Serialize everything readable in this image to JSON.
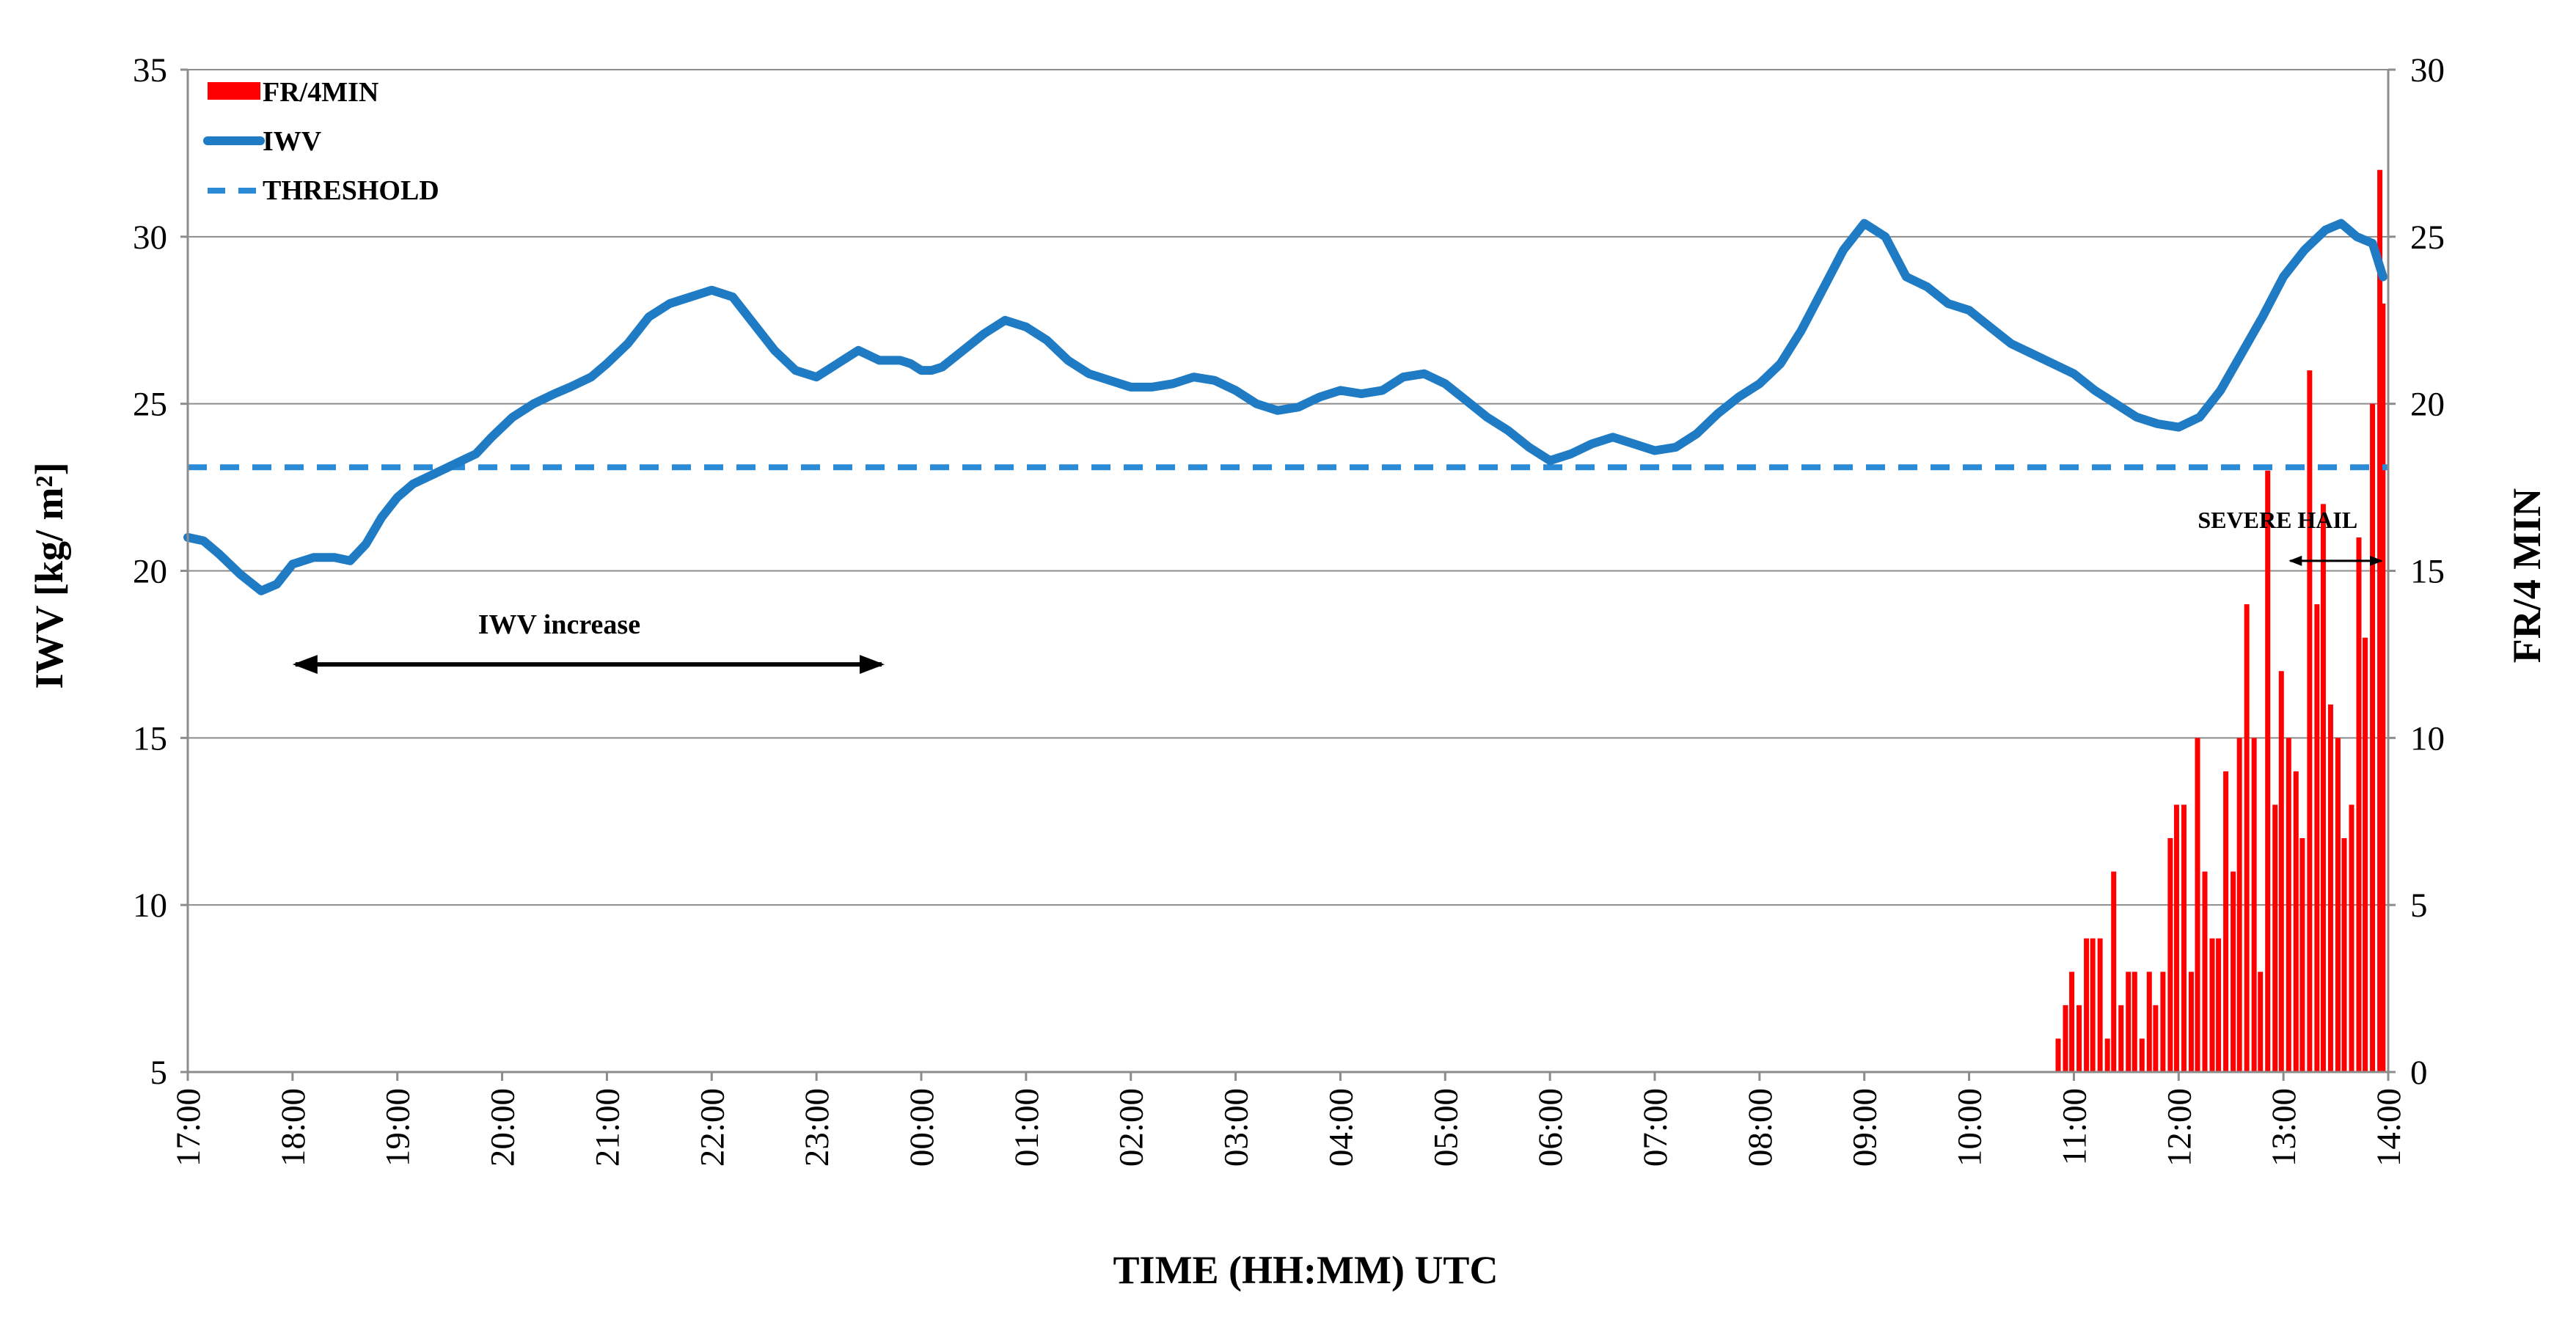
{
  "chart_data": {
    "type": "line",
    "xlabel": "TIME (HH:MM) UTC",
    "ylabel": "IWV [kg/ m²]",
    "y2label": "FR/4 MIN",
    "x_ticks": [
      "17:00",
      "18:00",
      "19:00",
      "20:00",
      "21:00",
      "22:00",
      "23:00",
      "00:00",
      "01:00",
      "02:00",
      "03:00",
      "04:00",
      "05:00",
      "06:00",
      "07:00",
      "08:00",
      "09:00",
      "10:00",
      "11:00",
      "12:00",
      "13:00",
      "14:00"
    ],
    "xlim_hours": [
      0,
      21
    ],
    "ylim": [
      5,
      35
    ],
    "y_ticks": [
      5,
      10,
      15,
      20,
      25,
      30,
      35
    ],
    "y2lim": [
      0,
      30
    ],
    "y2_ticks": [
      0,
      5,
      10,
      15,
      20,
      25,
      30
    ],
    "grid": "horizontal",
    "legend_position": "top-left",
    "colors": {
      "iwv": "#1f7bc4",
      "threshold": "#2a8ad6",
      "fr": "#ff0000"
    },
    "series": [
      {
        "name": "FR/4MIN",
        "type": "bar",
        "axis": "right",
        "x_hours": [
          17.85,
          17.92,
          17.98,
          18.05,
          18.12,
          18.18,
          18.25,
          18.32,
          18.38,
          18.45,
          18.52,
          18.58,
          18.65,
          18.72,
          18.78,
          18.85,
          18.92,
          18.98,
          19.05,
          19.12,
          19.18,
          19.25,
          19.32,
          19.38,
          19.45,
          19.52,
          19.58,
          19.65,
          19.72,
          19.78,
          19.85,
          19.92,
          19.98,
          20.05,
          20.12,
          20.18,
          20.25,
          20.32,
          20.38,
          20.45,
          20.52,
          20.58,
          20.65,
          20.72,
          20.78,
          20.85,
          20.92,
          20.95
        ],
        "values": [
          1,
          2,
          3,
          2,
          4,
          4,
          4,
          1,
          6,
          2,
          3,
          3,
          1,
          3,
          2,
          3,
          7,
          8,
          8,
          3,
          10,
          6,
          4,
          4,
          9,
          6,
          10,
          14,
          10,
          3,
          18,
          8,
          12,
          10,
          9,
          7,
          21,
          14,
          17,
          11,
          10,
          7,
          8,
          16,
          13,
          20,
          27,
          23
        ]
      },
      {
        "name": "IWV",
        "type": "line",
        "axis": "left",
        "x_hours": [
          0,
          0.15,
          0.3,
          0.5,
          0.7,
          0.85,
          1,
          1.2,
          1.4,
          1.55,
          1.7,
          1.85,
          2.0,
          2.15,
          2.35,
          2.55,
          2.75,
          2.9,
          3.1,
          3.3,
          3.5,
          3.65,
          3.85,
          4.0,
          4.2,
          4.4,
          4.6,
          4.8,
          5.0,
          5.2,
          5.4,
          5.6,
          5.8,
          6.0,
          6.2,
          6.4,
          6.6,
          6.8,
          6.9,
          7.0,
          7.1,
          7.2,
          7.4,
          7.6,
          7.8,
          8.0,
          8.2,
          8.4,
          8.6,
          8.8,
          9.0,
          9.2,
          9.4,
          9.6,
          9.8,
          10.0,
          10.2,
          10.4,
          10.6,
          10.8,
          11.0,
          11.2,
          11.4,
          11.6,
          11.8,
          12.0,
          12.2,
          12.4,
          12.6,
          12.8,
          13.0,
          13.2,
          13.4,
          13.6,
          13.8,
          14.0,
          14.2,
          14.4,
          14.6,
          14.8,
          15.0,
          15.2,
          15.4,
          15.6,
          15.8,
          16.0,
          16.2,
          16.4,
          16.6,
          16.8,
          17.0,
          17.2,
          17.4,
          17.6,
          17.8,
          18.0,
          18.2,
          18.4,
          18.6,
          18.8,
          19.0,
          19.2,
          19.4,
          19.6,
          19.8,
          20.0,
          20.2,
          20.4,
          20.55,
          20.7,
          20.85,
          20.95
        ],
        "values": [
          21.0,
          20.9,
          20.5,
          19.9,
          19.4,
          19.6,
          20.2,
          20.4,
          20.4,
          20.3,
          20.8,
          21.6,
          22.2,
          22.6,
          22.9,
          23.2,
          23.5,
          24.0,
          24.6,
          25.0,
          25.3,
          25.5,
          25.8,
          26.2,
          26.8,
          27.6,
          28.0,
          28.2,
          28.4,
          28.2,
          27.4,
          26.6,
          26.0,
          25.8,
          26.2,
          26.6,
          26.3,
          26.3,
          26.2,
          26.0,
          26.0,
          26.1,
          26.6,
          27.1,
          27.5,
          27.3,
          26.9,
          26.3,
          25.9,
          25.7,
          25.5,
          25.5,
          25.6,
          25.8,
          25.7,
          25.4,
          25.0,
          24.8,
          24.9,
          25.2,
          25.4,
          25.3,
          25.4,
          25.8,
          25.9,
          25.6,
          25.1,
          24.6,
          24.2,
          23.7,
          23.3,
          23.5,
          23.8,
          24.0,
          23.8,
          23.6,
          23.7,
          24.1,
          24.7,
          25.2,
          25.6,
          26.2,
          27.2,
          28.4,
          29.6,
          30.4,
          30.0,
          28.8,
          28.5,
          28.0,
          27.8,
          27.3,
          26.8,
          26.5,
          26.2,
          25.9,
          25.4,
          25.0,
          24.6,
          24.4,
          24.3,
          24.6,
          25.4,
          26.5,
          27.6,
          28.8,
          29.6,
          30.2,
          30.4,
          30.0,
          29.8,
          28.8
        ]
      },
      {
        "name": "THRESHOLD",
        "type": "line",
        "style": "dashed",
        "axis": "left",
        "value": 23.1
      }
    ],
    "annotations": [
      {
        "text": "IWV increase",
        "x_start_hours": 1.0,
        "x_end_hours": 6.65,
        "y": 17.2
      },
      {
        "text": "SEVERE  HAIL",
        "x_start_hours": 20.05,
        "x_end_hours": 20.95,
        "y": 20.3
      }
    ]
  }
}
